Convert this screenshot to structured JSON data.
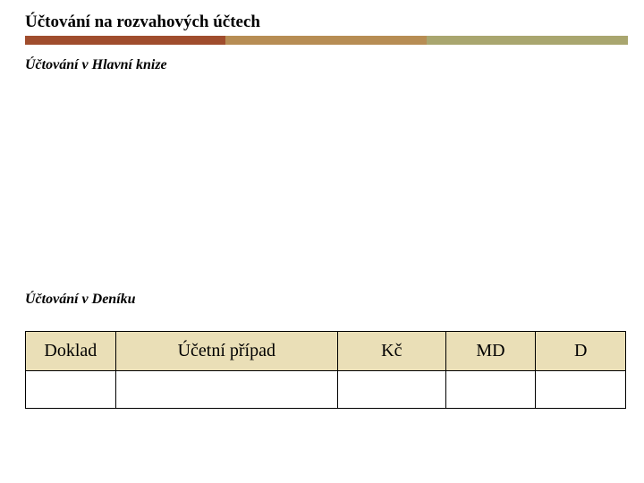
{
  "title": "Účtování na rozvahových účtech",
  "subtitle1": "Účtování v Hlavní knize",
  "subtitle2": "Účtování v Deníku",
  "colorbar": {
    "c1": "#a04d2d",
    "c2": "#b78d54",
    "c3": "#a9a66f"
  },
  "table": {
    "header_bg": "#eadfb7",
    "columns": [
      {
        "label": "Doklad",
        "width": "15%"
      },
      {
        "label": "Účetní případ",
        "width": "37%"
      },
      {
        "label": "Kč",
        "width": "18%"
      },
      {
        "label": "MD",
        "width": "15%"
      },
      {
        "label": "D",
        "width": "15%"
      }
    ],
    "rows": [
      [
        "",
        "",
        "",
        "",
        ""
      ]
    ]
  }
}
